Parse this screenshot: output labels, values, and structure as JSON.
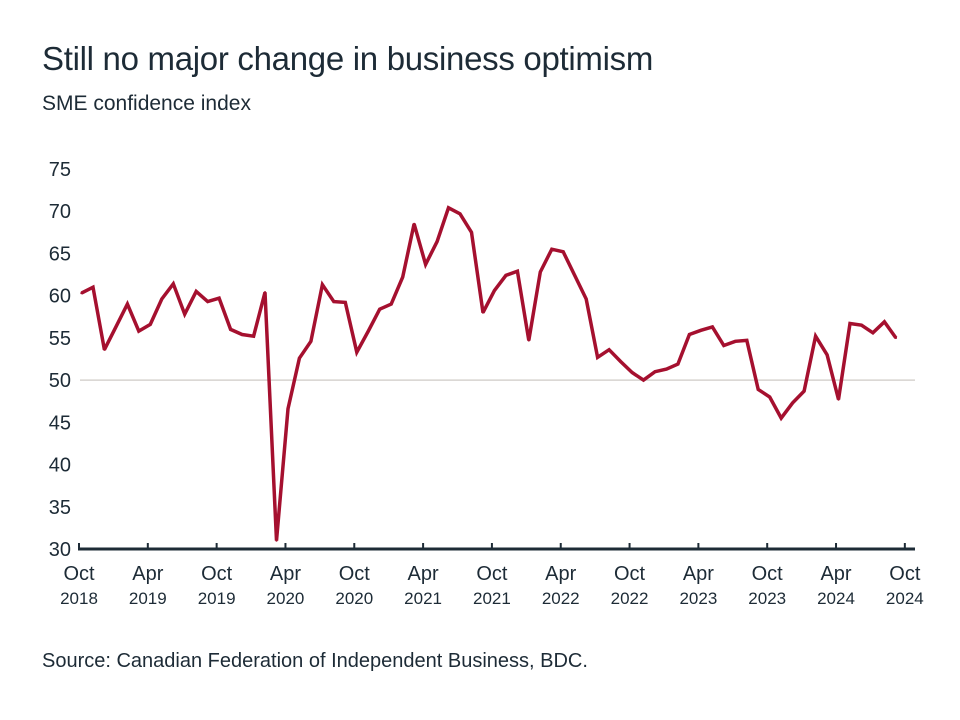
{
  "chart_data": {
    "type": "line",
    "title": "Still no major change in business optimism",
    "subtitle": "SME confidence index",
    "source": "Source: Canadian Federation of Independent Business, BDC.",
    "xlabel": "",
    "ylabel": "",
    "ylim": [
      30,
      75
    ],
    "yticks": [
      30,
      35,
      40,
      45,
      50,
      55,
      60,
      65,
      70,
      75
    ],
    "reference_line": 50,
    "grid": false,
    "line_color": "#a5102f",
    "axis_color": "#1d2b36",
    "x_start": "Oct 2018",
    "x_end": "Sep 2024",
    "xticks": [
      {
        "month": "Oct",
        "year": "2018"
      },
      {
        "month": "Apr",
        "year": "2019"
      },
      {
        "month": "Oct",
        "year": "2019"
      },
      {
        "month": "Apr",
        "year": "2020"
      },
      {
        "month": "Oct",
        "year": "2020"
      },
      {
        "month": "Apr",
        "year": "2021"
      },
      {
        "month": "Oct",
        "year": "2021"
      },
      {
        "month": "Apr",
        "year": "2022"
      },
      {
        "month": "Oct",
        "year": "2022"
      },
      {
        "month": "Apr",
        "year": "2023"
      },
      {
        "month": "Oct",
        "year": "2023"
      },
      {
        "month": "Apr",
        "year": "2024"
      },
      {
        "month": "Oct",
        "year": "2024"
      }
    ],
    "values": [
      60.3,
      61.0,
      53.6,
      56.3,
      59.0,
      55.8,
      56.6,
      59.6,
      61.4,
      57.8,
      60.5,
      59.3,
      59.7,
      56.0,
      55.4,
      55.2,
      60.4,
      31.0,
      46.6,
      52.6,
      54.6,
      61.3,
      59.3,
      59.2,
      53.3,
      55.8,
      58.4,
      59.0,
      62.2,
      68.5,
      63.7,
      66.4,
      70.4,
      69.7,
      67.5,
      58.0,
      60.6,
      62.4,
      62.9,
      54.7,
      62.8,
      65.5,
      65.2,
      62.4,
      59.6,
      52.7,
      53.6,
      52.2,
      50.9,
      50.0,
      51.0,
      51.3,
      51.9,
      55.4,
      55.9,
      56.3,
      54.1,
      54.6,
      54.7,
      48.9,
      48.0,
      45.5,
      47.3,
      48.7,
      55.2,
      53.0,
      47.7,
      56.7,
      56.5,
      55.6,
      56.9,
      55.0
    ]
  }
}
